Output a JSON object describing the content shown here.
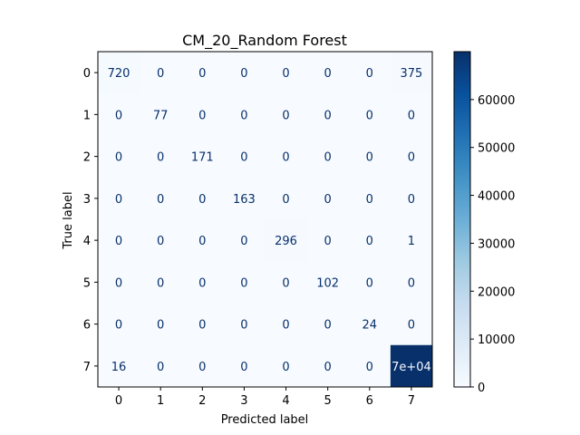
{
  "chart_data": {
    "type": "heatmap",
    "title": "CM_20_Random Forest",
    "xlabel": "Predicted label",
    "ylabel": "True label",
    "x_categories": [
      "0",
      "1",
      "2",
      "3",
      "4",
      "5",
      "6",
      "7"
    ],
    "y_categories": [
      "0",
      "1",
      "2",
      "3",
      "4",
      "5",
      "6",
      "7"
    ],
    "values": [
      [
        720,
        0,
        0,
        0,
        0,
        0,
        0,
        375
      ],
      [
        0,
        77,
        0,
        0,
        0,
        0,
        0,
        0
      ],
      [
        0,
        0,
        171,
        0,
        0,
        0,
        0,
        0
      ],
      [
        0,
        0,
        0,
        163,
        0,
        0,
        0,
        0
      ],
      [
        0,
        0,
        0,
        0,
        296,
        0,
        0,
        1
      ],
      [
        0,
        0,
        0,
        0,
        0,
        102,
        0,
        0
      ],
      [
        0,
        0,
        0,
        0,
        0,
        0,
        24,
        0
      ],
      [
        16,
        0,
        0,
        0,
        0,
        0,
        0,
        70000
      ]
    ],
    "cell_labels": [
      [
        "720",
        "0",
        "0",
        "0",
        "0",
        "0",
        "0",
        "375"
      ],
      [
        "0",
        "77",
        "0",
        "0",
        "0",
        "0",
        "0",
        "0"
      ],
      [
        "0",
        "0",
        "171",
        "0",
        "0",
        "0",
        "0",
        "0"
      ],
      [
        "0",
        "0",
        "0",
        "163",
        "0",
        "0",
        "0",
        "0"
      ],
      [
        "0",
        "0",
        "0",
        "0",
        "296",
        "0",
        "0",
        "1"
      ],
      [
        "0",
        "0",
        "0",
        "0",
        "0",
        "102",
        "0",
        "0"
      ],
      [
        "0",
        "0",
        "0",
        "0",
        "0",
        "0",
        "24",
        "0"
      ],
      [
        "16",
        "0",
        "0",
        "0",
        "0",
        "0",
        "0",
        "7e+04"
      ]
    ],
    "colormap": "Blues",
    "colorbar": {
      "range": [
        0,
        70000
      ],
      "ticks": [
        0,
        10000,
        20000,
        30000,
        40000,
        50000,
        60000
      ],
      "tick_labels": [
        "0",
        "10000",
        "20000",
        "30000",
        "40000",
        "50000",
        "60000"
      ]
    },
    "grid": false
  }
}
